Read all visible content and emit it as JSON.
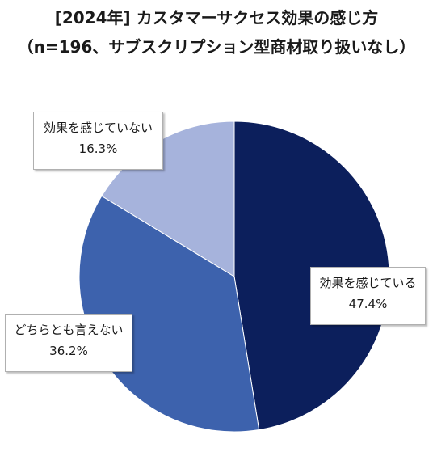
{
  "chart_data": {
    "type": "pie",
    "title": "[2024年] カスタマーサクセス効果の感じ方",
    "subtitle": "（n=196、サブスクリプション型商材取り扱いなし）",
    "start_angle_deg": 0,
    "direction": "clockwise",
    "slices": [
      {
        "label": "効果を感じている",
        "value": 47.4,
        "value_label": "47.4%",
        "color": "#0c1f5c"
      },
      {
        "label": "どちらとも言えない",
        "value": 36.2,
        "value_label": "36.2%",
        "color": "#3d62ad"
      },
      {
        "label": "効果を感じていない",
        "value": 16.3,
        "value_label": "16.3%",
        "color": "#a6b3dc"
      }
    ]
  }
}
